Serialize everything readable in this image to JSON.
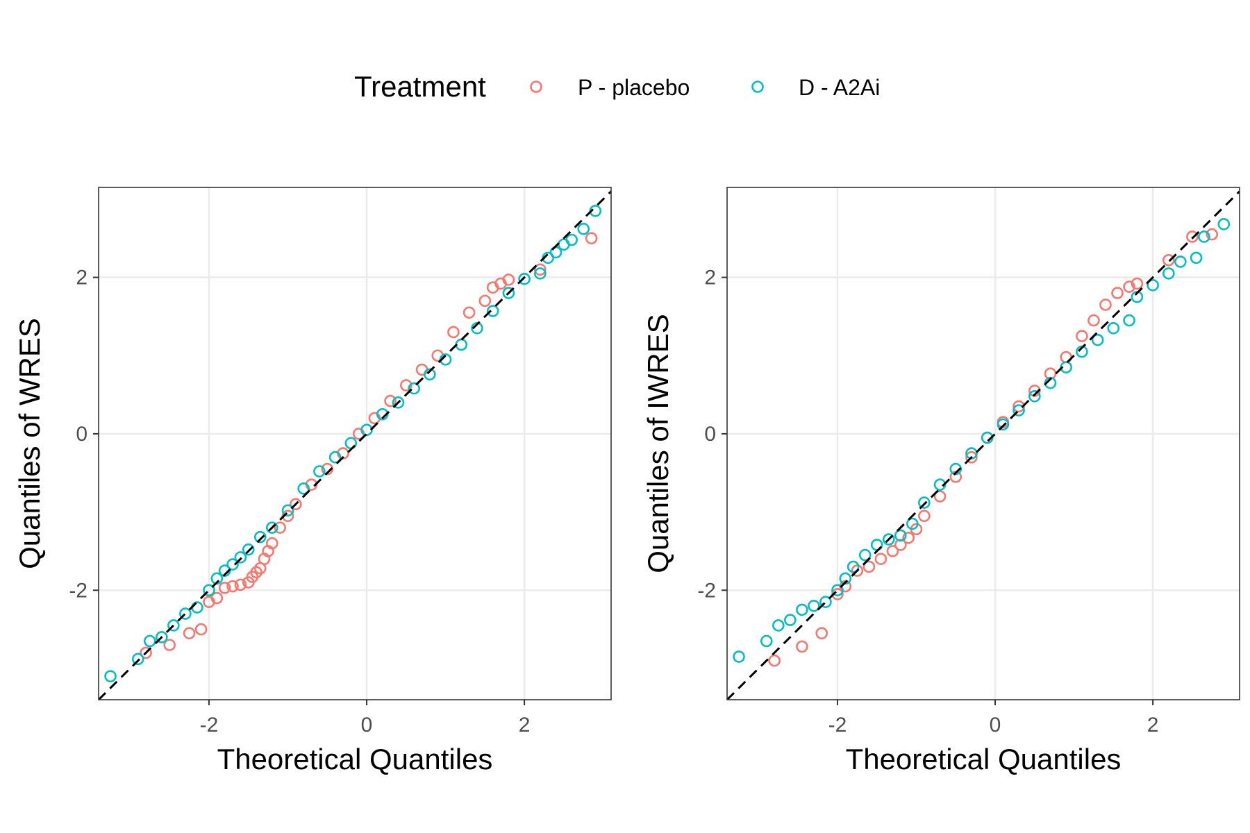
{
  "legend": {
    "title": "Treatment",
    "items": [
      {
        "label": "P - placebo",
        "color": "#F8766D"
      },
      {
        "label": "D - A2Ai",
        "color": "#00BFC4"
      }
    ]
  },
  "chart_data": [
    {
      "type": "scatter",
      "subtype": "qq-plot",
      "xlabel": "Theoretical Quantiles",
      "ylabel": "Quantiles of WRES",
      "xlim": [
        -3.4,
        3.1
      ],
      "ylim": [
        -3.4,
        3.15
      ],
      "xticks": [
        -2,
        0,
        2
      ],
      "yticks": [
        -2,
        0,
        2
      ],
      "grid": true,
      "reference_line": "y = x (dashed)",
      "series": [
        {
          "name": "P - placebo",
          "color": "#F8766D",
          "points": [
            [
              -2.8,
              -2.8
            ],
            [
              -2.5,
              -2.7
            ],
            [
              -2.25,
              -2.55
            ],
            [
              -2.1,
              -2.5
            ],
            [
              -2.0,
              -2.15
            ],
            [
              -1.9,
              -2.1
            ],
            [
              -1.8,
              -1.97
            ],
            [
              -1.7,
              -1.95
            ],
            [
              -1.6,
              -1.93
            ],
            [
              -1.5,
              -1.9
            ],
            [
              -1.45,
              -1.83
            ],
            [
              -1.4,
              -1.77
            ],
            [
              -1.35,
              -1.72
            ],
            [
              -1.3,
              -1.6
            ],
            [
              -1.25,
              -1.5
            ],
            [
              -1.2,
              -1.4
            ],
            [
              -1.1,
              -1.2
            ],
            [
              -1.0,
              -1.05
            ],
            [
              -0.9,
              -0.9
            ],
            [
              -0.7,
              -0.65
            ],
            [
              -0.5,
              -0.45
            ],
            [
              -0.3,
              -0.25
            ],
            [
              -0.1,
              0.0
            ],
            [
              0.1,
              0.2
            ],
            [
              0.3,
              0.42
            ],
            [
              0.5,
              0.62
            ],
            [
              0.7,
              0.82
            ],
            [
              0.9,
              1.0
            ],
            [
              1.1,
              1.3
            ],
            [
              1.3,
              1.55
            ],
            [
              1.5,
              1.7
            ],
            [
              1.6,
              1.87
            ],
            [
              1.7,
              1.92
            ],
            [
              1.8,
              1.97
            ],
            [
              2.2,
              2.1
            ],
            [
              2.85,
              2.5
            ]
          ]
        },
        {
          "name": "D - A2Ai",
          "color": "#00BFC4",
          "points": [
            [
              -3.25,
              -3.1
            ],
            [
              -2.9,
              -2.88
            ],
            [
              -2.75,
              -2.65
            ],
            [
              -2.6,
              -2.6
            ],
            [
              -2.45,
              -2.45
            ],
            [
              -2.3,
              -2.3
            ],
            [
              -2.15,
              -2.22
            ],
            [
              -2.0,
              -2.0
            ],
            [
              -1.9,
              -1.85
            ],
            [
              -1.8,
              -1.75
            ],
            [
              -1.7,
              -1.67
            ],
            [
              -1.6,
              -1.58
            ],
            [
              -1.5,
              -1.48
            ],
            [
              -1.35,
              -1.32
            ],
            [
              -1.2,
              -1.2
            ],
            [
              -1.0,
              -0.98
            ],
            [
              -0.8,
              -0.7
            ],
            [
              -0.6,
              -0.48
            ],
            [
              -0.4,
              -0.3
            ],
            [
              -0.2,
              -0.12
            ],
            [
              0.0,
              0.05
            ],
            [
              0.2,
              0.25
            ],
            [
              0.4,
              0.4
            ],
            [
              0.6,
              0.58
            ],
            [
              0.8,
              0.76
            ],
            [
              1.0,
              0.95
            ],
            [
              1.2,
              1.14
            ],
            [
              1.4,
              1.35
            ],
            [
              1.6,
              1.57
            ],
            [
              1.8,
              1.8
            ],
            [
              2.0,
              1.98
            ],
            [
              2.2,
              2.05
            ],
            [
              2.3,
              2.25
            ],
            [
              2.4,
              2.32
            ],
            [
              2.5,
              2.42
            ],
            [
              2.6,
              2.48
            ],
            [
              2.75,
              2.62
            ],
            [
              2.9,
              2.85
            ]
          ]
        }
      ]
    },
    {
      "type": "scatter",
      "subtype": "qq-plot",
      "xlabel": "Theoretical Quantiles",
      "ylabel": "Quantiles of IWRES",
      "xlim": [
        -3.4,
        3.1
      ],
      "ylim": [
        -3.4,
        3.15
      ],
      "xticks": [
        -2,
        0,
        2
      ],
      "yticks": [
        -2,
        0,
        2
      ],
      "grid": true,
      "reference_line": "y = x (dashed)",
      "series": [
        {
          "name": "P - placebo",
          "color": "#F8766D",
          "points": [
            [
              -2.8,
              -2.9
            ],
            [
              -2.45,
              -2.72
            ],
            [
              -2.2,
              -2.55
            ],
            [
              -2.0,
              -2.05
            ],
            [
              -1.9,
              -1.95
            ],
            [
              -1.75,
              -1.75
            ],
            [
              -1.6,
              -1.7
            ],
            [
              -1.45,
              -1.6
            ],
            [
              -1.3,
              -1.5
            ],
            [
              -1.2,
              -1.42
            ],
            [
              -1.1,
              -1.33
            ],
            [
              -1.0,
              -1.22
            ],
            [
              -0.9,
              -1.05
            ],
            [
              -0.7,
              -0.8
            ],
            [
              -0.5,
              -0.55
            ],
            [
              -0.3,
              -0.3
            ],
            [
              -0.1,
              -0.05
            ],
            [
              0.1,
              0.15
            ],
            [
              0.3,
              0.35
            ],
            [
              0.5,
              0.55
            ],
            [
              0.7,
              0.77
            ],
            [
              0.9,
              0.98
            ],
            [
              1.1,
              1.25
            ],
            [
              1.25,
              1.45
            ],
            [
              1.4,
              1.65
            ],
            [
              1.55,
              1.8
            ],
            [
              1.7,
              1.88
            ],
            [
              1.8,
              1.92
            ],
            [
              2.2,
              2.22
            ],
            [
              2.5,
              2.52
            ],
            [
              2.75,
              2.55
            ]
          ]
        },
        {
          "name": "D - A2Ai",
          "color": "#00BFC4",
          "points": [
            [
              -3.25,
              -2.85
            ],
            [
              -2.9,
              -2.65
            ],
            [
              -2.75,
              -2.45
            ],
            [
              -2.6,
              -2.38
            ],
            [
              -2.45,
              -2.25
            ],
            [
              -2.3,
              -2.2
            ],
            [
              -2.15,
              -2.15
            ],
            [
              -2.0,
              -2.0
            ],
            [
              -1.9,
              -1.85
            ],
            [
              -1.8,
              -1.7
            ],
            [
              -1.65,
              -1.55
            ],
            [
              -1.5,
              -1.42
            ],
            [
              -1.35,
              -1.35
            ],
            [
              -1.2,
              -1.3
            ],
            [
              -1.05,
              -1.15
            ],
            [
              -0.9,
              -0.88
            ],
            [
              -0.7,
              -0.65
            ],
            [
              -0.5,
              -0.45
            ],
            [
              -0.3,
              -0.25
            ],
            [
              -0.1,
              -0.05
            ],
            [
              0.1,
              0.12
            ],
            [
              0.3,
              0.3
            ],
            [
              0.5,
              0.48
            ],
            [
              0.7,
              0.65
            ],
            [
              0.9,
              0.85
            ],
            [
              1.1,
              1.05
            ],
            [
              1.3,
              1.2
            ],
            [
              1.5,
              1.35
            ],
            [
              1.7,
              1.45
            ],
            [
              1.8,
              1.75
            ],
            [
              2.0,
              1.9
            ],
            [
              2.2,
              2.05
            ],
            [
              2.35,
              2.2
            ],
            [
              2.55,
              2.25
            ],
            [
              2.65,
              2.52
            ],
            [
              2.9,
              2.68
            ]
          ]
        }
      ]
    }
  ]
}
